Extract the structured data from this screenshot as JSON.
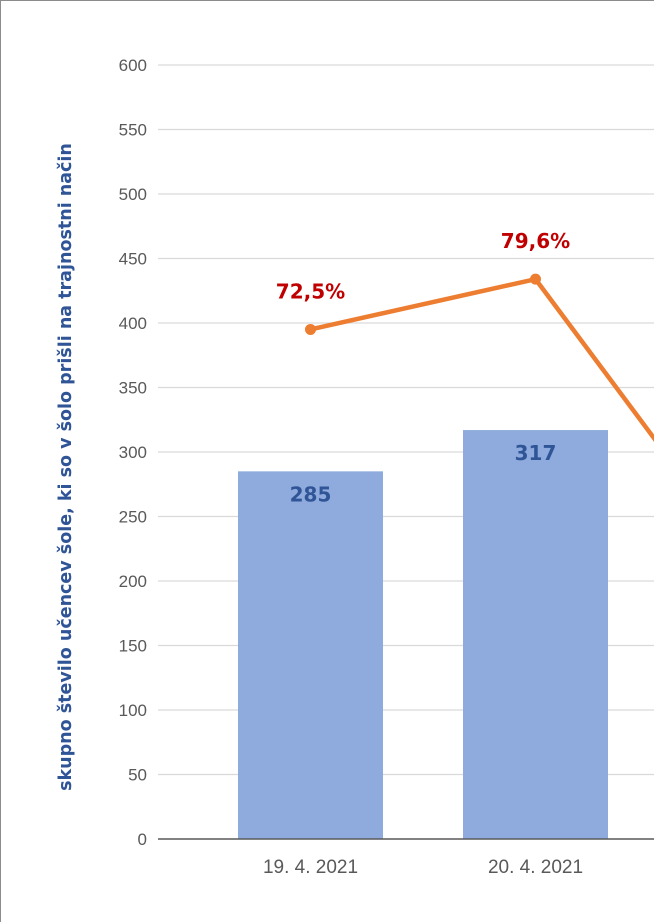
{
  "chart_data": {
    "type": "bar",
    "categories": [
      "19. 4. 2021",
      "20. 4. 2021"
    ],
    "ylabel": "skupno število učencev šole, ki so v šolo prišli na trajnostni način",
    "ylim": [
      0,
      600
    ],
    "yticks": [
      "0",
      "50",
      "100",
      "150",
      "200",
      "250",
      "300",
      "350",
      "400",
      "450",
      "500",
      "550",
      "600"
    ],
    "grid": true,
    "bars": {
      "values": [
        285,
        317
      ],
      "labels": [
        "285",
        "317"
      ],
      "color": "#8faadc",
      "label_color": "#2f5597"
    },
    "line": {
      "values": [
        395,
        434
      ],
      "labels": [
        "72,5%",
        "79,6%"
      ],
      "continues_off_edge_to": 200,
      "color": "#ed7d31",
      "label_color": "#c00000"
    },
    "colors": {
      "gridline": "#d9d9d9",
      "axis": "#595959",
      "tick_text": "#595959",
      "title_text": "#2f5597"
    }
  }
}
